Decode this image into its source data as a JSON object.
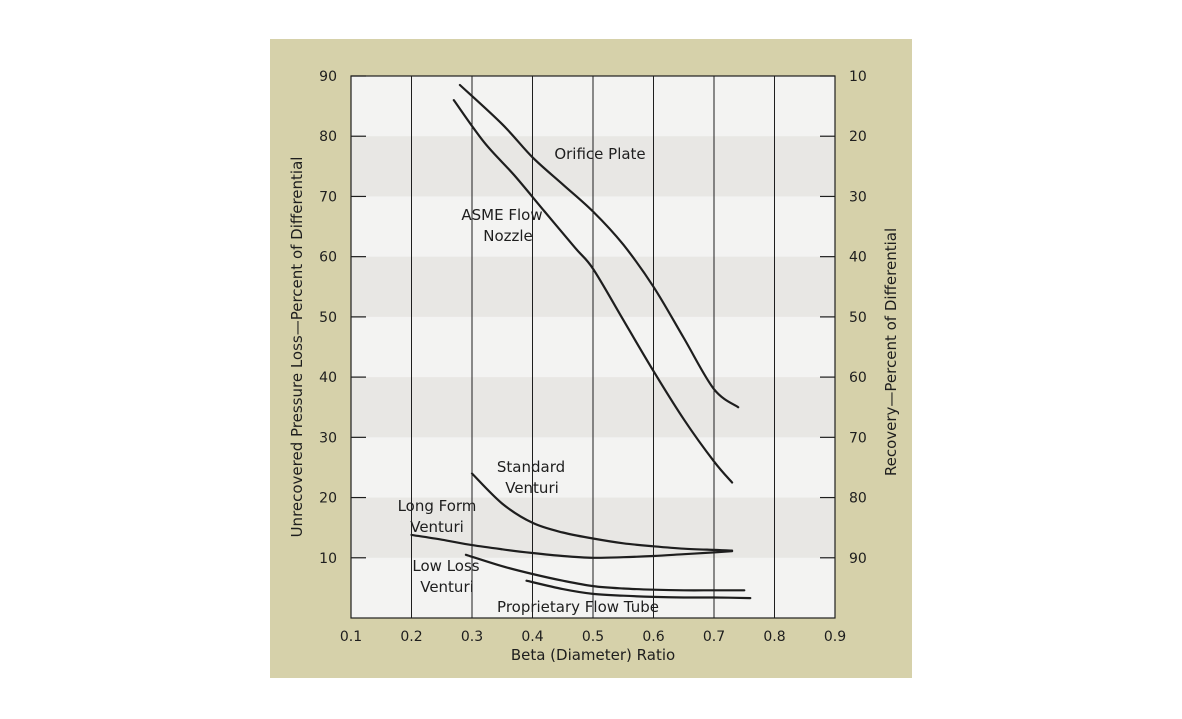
{
  "chart_data": {
    "type": "line",
    "x_label": "Beta (Diameter) Ratio",
    "y_label_left": "Unrecovered Pressure Loss—Percent of Differential",
    "y_label_right": "Recovery—Percent of Differential",
    "xlim": [
      0.1,
      0.9
    ],
    "ylim": [
      0,
      90
    ],
    "x_ticks": [
      "0.1",
      "0.2",
      "0.3",
      "0.4",
      "0.5",
      "0.6",
      "0.7",
      "0.8",
      "0.9"
    ],
    "x_tick_values": [
      0.1,
      0.2,
      0.3,
      0.4,
      0.5,
      0.6,
      0.7,
      0.8,
      0.9
    ],
    "y_ticks_left": [
      "10",
      "20",
      "30",
      "40",
      "50",
      "60",
      "70",
      "80",
      "90"
    ],
    "y_tick_values": [
      10,
      20,
      30,
      40,
      50,
      60,
      70,
      80,
      90
    ],
    "y_ticks_right": [
      "90",
      "80",
      "70",
      "60",
      "50",
      "40",
      "30",
      "20",
      "10"
    ],
    "grid": "vertical lines and alternating horizontal bands",
    "colors": {
      "frame_background": "#d6d1aa",
      "plot_background": "#f3f3f2",
      "band_shade": "#e8e7e4",
      "line": "#1e1e1e"
    },
    "series": [
      {
        "name": "Orifice Plate",
        "label_lines": [
          "Orifice Plate"
        ],
        "x": [
          0.28,
          0.35,
          0.4,
          0.45,
          0.5,
          0.55,
          0.6,
          0.65,
          0.7,
          0.74
        ],
        "y": [
          88.5,
          82,
          76.5,
          72,
          67.5,
          62,
          55,
          46.5,
          38,
          35
        ]
      },
      {
        "name": "ASME Flow Nozzle",
        "label_lines": [
          "ASME Flow",
          "Nozzle"
        ],
        "x": [
          0.27,
          0.32,
          0.37,
          0.42,
          0.47,
          0.5,
          0.55,
          0.6,
          0.65,
          0.7,
          0.73
        ],
        "y": [
          86,
          79,
          73.5,
          67.5,
          61.5,
          58,
          49.5,
          41,
          33,
          26,
          22.5
        ]
      },
      {
        "name": "Standard Venturi",
        "label_lines": [
          "Standard",
          "Venturi"
        ],
        "x": [
          0.3,
          0.35,
          0.4,
          0.45,
          0.5,
          0.55,
          0.6,
          0.65,
          0.7,
          0.73
        ],
        "y": [
          24,
          19,
          15.8,
          14.2,
          13.2,
          12.4,
          11.9,
          11.5,
          11.3,
          11.2
        ]
      },
      {
        "name": "Long Form Venturi",
        "label_lines": [
          "Long Form",
          "Venturi"
        ],
        "x": [
          0.2,
          0.25,
          0.3,
          0.35,
          0.4,
          0.45,
          0.5,
          0.55,
          0.6,
          0.65,
          0.7,
          0.73
        ],
        "y": [
          13.8,
          13.0,
          12.1,
          11.4,
          10.8,
          10.3,
          10.0,
          10.1,
          10.3,
          10.6,
          10.9,
          11.1
        ]
      },
      {
        "name": "Low Loss Venturi",
        "label_lines": [
          "Low Loss",
          "Venturi"
        ],
        "x": [
          0.29,
          0.35,
          0.4,
          0.45,
          0.5,
          0.55,
          0.6,
          0.65,
          0.7,
          0.75
        ],
        "y": [
          10.5,
          8.6,
          7.3,
          6.2,
          5.3,
          4.9,
          4.7,
          4.6,
          4.6,
          4.6
        ]
      },
      {
        "name": "Proprietary Flow Tube",
        "label_lines": [
          "Proprietary Flow Tube"
        ],
        "x": [
          0.39,
          0.45,
          0.5,
          0.55,
          0.6,
          0.65,
          0.7,
          0.76
        ],
        "y": [
          6.2,
          4.8,
          4.0,
          3.7,
          3.5,
          3.4,
          3.4,
          3.3
        ]
      }
    ]
  }
}
